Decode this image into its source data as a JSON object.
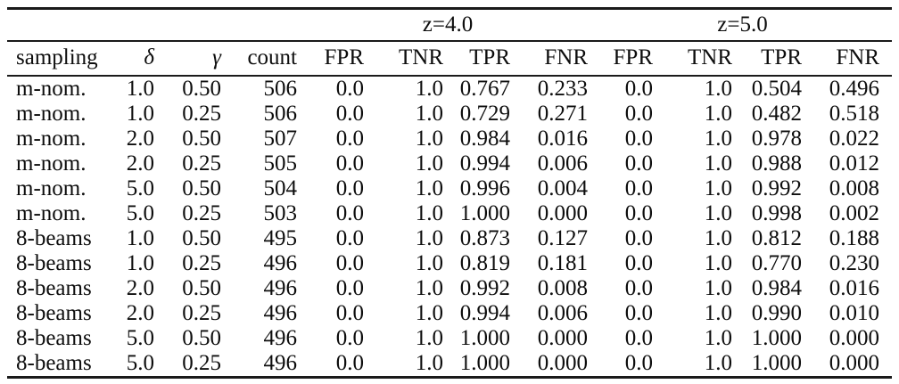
{
  "page": {
    "background": "#ffffff",
    "text_color": "#0d0d0d",
    "rule_color": "#1a1a1a"
  },
  "table": {
    "group_header_row": [
      {
        "label": "",
        "span": 4
      },
      {
        "label": "z=4.0",
        "span": 4
      },
      {
        "label": "z=5.0",
        "span": 4
      }
    ],
    "column_headers": [
      {
        "label": "sampling",
        "name": "sampling",
        "italic": false
      },
      {
        "label": "δ",
        "name": "delta",
        "italic": true
      },
      {
        "label": "γ",
        "name": "gamma",
        "italic": true
      },
      {
        "label": "count",
        "name": "count",
        "italic": false
      },
      {
        "label": "FPR",
        "name": "fpr-z4",
        "italic": false
      },
      {
        "label": "TNR",
        "name": "tnr-z4",
        "italic": false
      },
      {
        "label": "TPR",
        "name": "tpr-z4",
        "italic": false
      },
      {
        "label": "FNR",
        "name": "fnr-z4",
        "italic": false
      },
      {
        "label": "FPR",
        "name": "fpr-z5",
        "italic": false
      },
      {
        "label": "TNR",
        "name": "tnr-z5",
        "italic": false
      },
      {
        "label": "TPR",
        "name": "tpr-z5",
        "italic": false
      },
      {
        "label": "FNR",
        "name": "fnr-z5",
        "italic": false
      }
    ],
    "rows": [
      [
        "m-nom.",
        "1.0",
        "0.50",
        "506",
        "0.0",
        "1.0",
        "0.767",
        "0.233",
        "0.0",
        "1.0",
        "0.504",
        "0.496"
      ],
      [
        "m-nom.",
        "1.0",
        "0.25",
        "506",
        "0.0",
        "1.0",
        "0.729",
        "0.271",
        "0.0",
        "1.0",
        "0.482",
        "0.518"
      ],
      [
        "m-nom.",
        "2.0",
        "0.50",
        "507",
        "0.0",
        "1.0",
        "0.984",
        "0.016",
        "0.0",
        "1.0",
        "0.978",
        "0.022"
      ],
      [
        "m-nom.",
        "2.0",
        "0.25",
        "505",
        "0.0",
        "1.0",
        "0.994",
        "0.006",
        "0.0",
        "1.0",
        "0.988",
        "0.012"
      ],
      [
        "m-nom.",
        "5.0",
        "0.50",
        "504",
        "0.0",
        "1.0",
        "0.996",
        "0.004",
        "0.0",
        "1.0",
        "0.992",
        "0.008"
      ],
      [
        "m-nom.",
        "5.0",
        "0.25",
        "503",
        "0.0",
        "1.0",
        "1.000",
        "0.000",
        "0.0",
        "1.0",
        "0.998",
        "0.002"
      ],
      [
        "8-beams",
        "1.0",
        "0.50",
        "495",
        "0.0",
        "1.0",
        "0.873",
        "0.127",
        "0.0",
        "1.0",
        "0.812",
        "0.188"
      ],
      [
        "8-beams",
        "1.0",
        "0.25",
        "496",
        "0.0",
        "1.0",
        "0.819",
        "0.181",
        "0.0",
        "1.0",
        "0.770",
        "0.230"
      ],
      [
        "8-beams",
        "2.0",
        "0.50",
        "496",
        "0.0",
        "1.0",
        "0.992",
        "0.008",
        "0.0",
        "1.0",
        "0.984",
        "0.016"
      ],
      [
        "8-beams",
        "2.0",
        "0.25",
        "496",
        "0.0",
        "1.0",
        "0.994",
        "0.006",
        "0.0",
        "1.0",
        "0.990",
        "0.010"
      ],
      [
        "8-beams",
        "5.0",
        "0.50",
        "496",
        "0.0",
        "1.0",
        "1.000",
        "0.000",
        "0.0",
        "1.0",
        "1.000",
        "0.000"
      ],
      [
        "8-beams",
        "5.0",
        "0.25",
        "496",
        "0.0",
        "1.0",
        "1.000",
        "0.000",
        "0.0",
        "1.0",
        "1.000",
        "0.000"
      ]
    ]
  }
}
